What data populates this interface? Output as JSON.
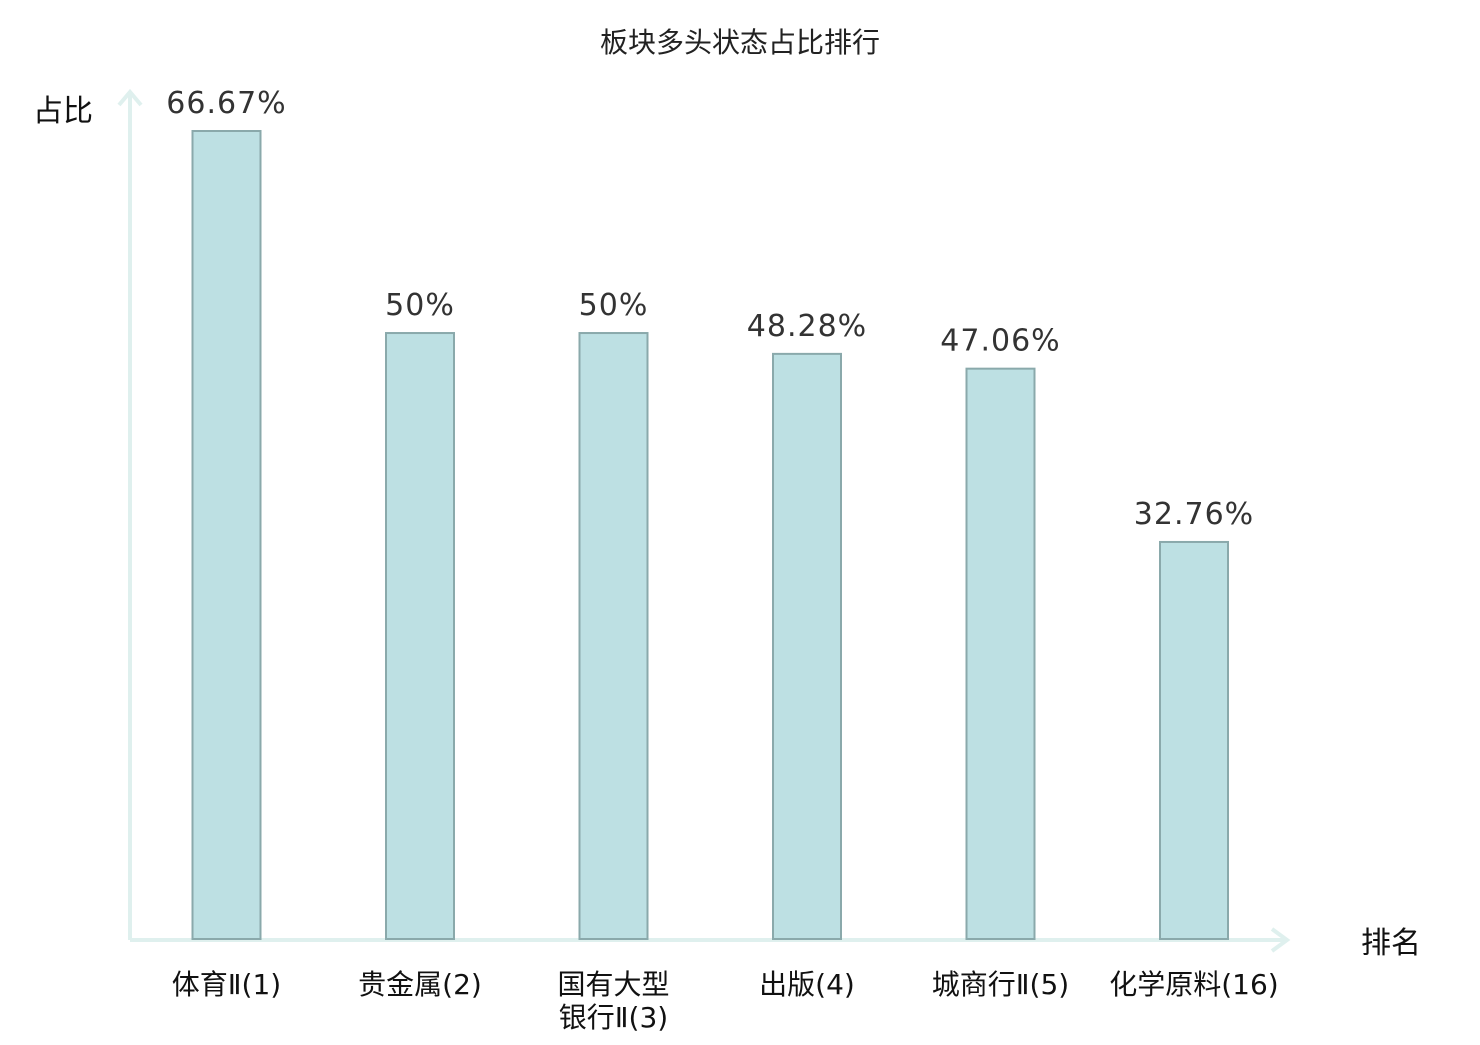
{
  "chart_data": {
    "type": "bar",
    "title": "板块多头状态占比排行",
    "ylabel": "占比",
    "xlabel": "排名",
    "ylim": [
      0,
      70
    ],
    "grid": false,
    "categories": [
      {
        "lines": [
          "体育Ⅱ(1)"
        ],
        "highlight": false
      },
      {
        "lines": [
          "贵金属(2)"
        ],
        "highlight": false
      },
      {
        "lines": [
          "国有大型",
          "银行Ⅱ(3)"
        ],
        "highlight": false
      },
      {
        "lines": [
          "出版(4)"
        ],
        "highlight": false
      },
      {
        "lines": [
          "城商行Ⅱ(5)"
        ],
        "highlight": false
      },
      {
        "lines": [
          "化学原料(16)"
        ],
        "highlight": true
      }
    ],
    "values": [
      66.67,
      50,
      50,
      48.28,
      47.06,
      32.76
    ],
    "value_labels": [
      "66.67%",
      "50%",
      "50%",
      "48.28%",
      "47.06%",
      "32.76%"
    ]
  },
  "colors": {
    "bar_fill": "#bde0e3",
    "bar_stroke": "#8aa9ab",
    "axis": "#dff0ee",
    "highlight_text": "#dd2222",
    "normal_text": "#111111",
    "value_text": "#333333"
  }
}
